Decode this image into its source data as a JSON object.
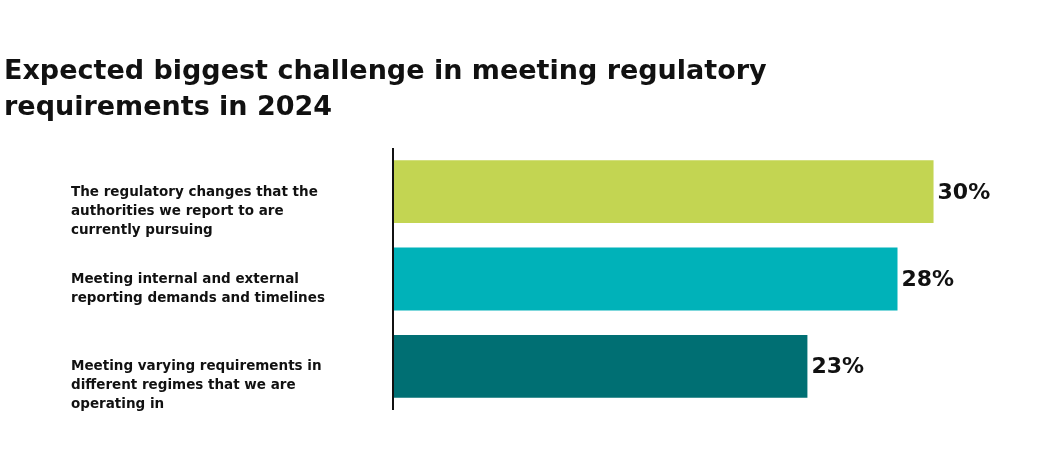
{
  "chart_data": {
    "type": "bar",
    "orientation": "horizontal",
    "title": "Expected biggest challenge in meeting regulatory requirements in 2024",
    "categories": [
      "The regulatory changes that the authorities we report to are currently pursuing",
      "Meeting internal and external reporting demands and timelines",
      "Meeting varying requirements in different regimes that we are operating in"
    ],
    "values": [
      30,
      28,
      23
    ],
    "colors": [
      "#c3d552",
      "#00b2b9",
      "#006f73"
    ],
    "value_labels": [
      "30%",
      "28%",
      "23%"
    ]
  }
}
